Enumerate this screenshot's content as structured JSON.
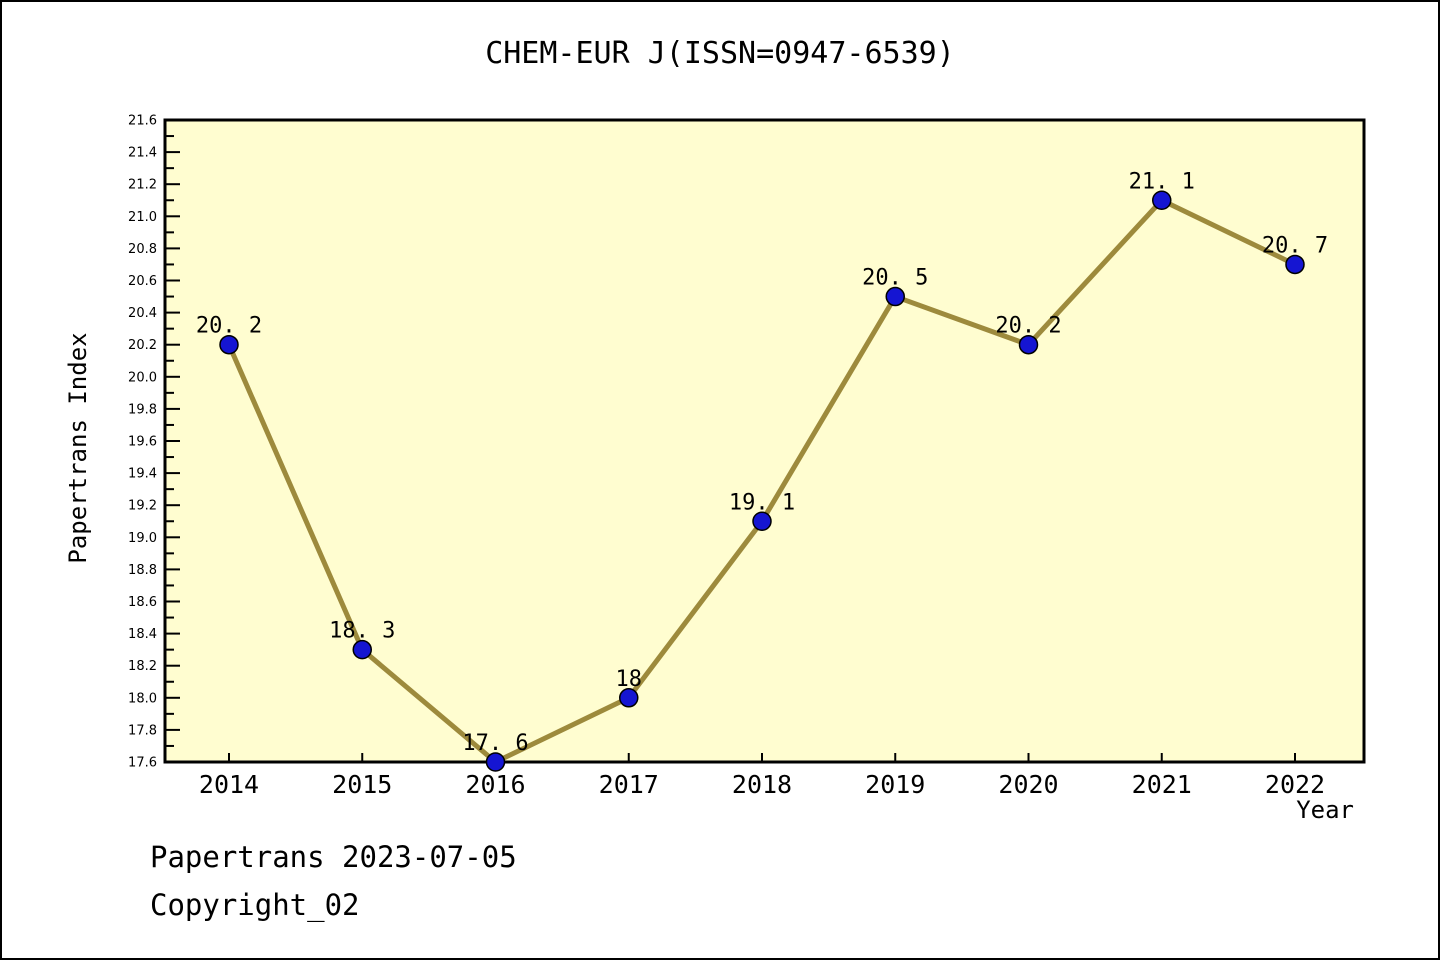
{
  "page": {
    "footer_line1": "Papertrans 2023-07-05",
    "footer_line2": "Copyright_02"
  },
  "chart_data": {
    "type": "line",
    "title": "CHEM-EUR J(ISSN=0947-6539)",
    "xlabel": "Year",
    "ylabel": "Papertrans Index",
    "categories": [
      2014,
      2015,
      2016,
      2017,
      2018,
      2019,
      2020,
      2021,
      2022
    ],
    "values": [
      20.2,
      18.3,
      17.6,
      18,
      19.1,
      20.5,
      20.2,
      21.1,
      20.7
    ],
    "point_labels": [
      "20. 2",
      "18. 3",
      "17. 6",
      "18",
      "19. 1",
      "20. 5",
      "20. 2",
      "21. 1",
      "20. 7"
    ],
    "ylim": [
      17.6,
      21.6
    ],
    "ytick_major_step": 0.2,
    "ytick_minor_step": 0.1,
    "grid": false,
    "legend": "none",
    "colors": {
      "plot_bg": "#FFFDD0",
      "line": "#9D8A3C",
      "marker_fill": "#1515D2",
      "marker_edge": "#000000",
      "axis": "#000000",
      "text": "#000000"
    }
  }
}
